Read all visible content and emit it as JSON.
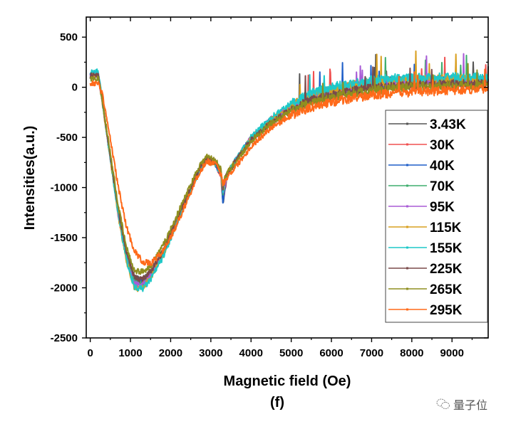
{
  "chart_data": {
    "type": "line",
    "title": "",
    "panel_label": "(f)",
    "xlabel": "Magnetic field (Oe)",
    "ylabel": "Intensities(a.u.)",
    "xlim": [
      -100,
      9900
    ],
    "ylim": [
      -2500,
      700
    ],
    "xticks": [
      0,
      1000,
      2000,
      3000,
      4000,
      5000,
      6000,
      7000,
      8000,
      9000
    ],
    "yticks": [
      500,
      0,
      -500,
      -1000,
      -1500,
      -2000,
      -2500
    ],
    "x_minor_step": 500,
    "y_minor_step": 250,
    "legend_position": "right",
    "grid": false,
    "x": [
      0,
      200,
      300,
      500,
      700,
      900,
      1100,
      1300,
      1500,
      1800,
      2100,
      2400,
      2700,
      2900,
      3100,
      3250,
      3300,
      3400,
      3600,
      4000,
      4500,
      5000,
      5500,
      6000,
      6500,
      7000,
      7500,
      8000,
      8500,
      9000,
      9500,
      9900
    ],
    "series": [
      {
        "name": "3.43K",
        "color": "#555555",
        "values": [
          110,
          120,
          -150,
          -700,
          -1250,
          -1650,
          -1900,
          -1920,
          -1850,
          -1650,
          -1380,
          -1100,
          -830,
          -720,
          -750,
          -860,
          -1180,
          -880,
          -750,
          -520,
          -330,
          -200,
          -110,
          -50,
          -10,
          20,
          40,
          50,
          60,
          60,
          60,
          60
        ]
      },
      {
        "name": "30K",
        "color": "#f05050",
        "values": [
          120,
          130,
          -150,
          -720,
          -1280,
          -1700,
          -1950,
          -1960,
          -1880,
          -1670,
          -1400,
          -1120,
          -840,
          -730,
          -760,
          -880,
          -1150,
          -880,
          -750,
          -520,
          -330,
          -200,
          -100,
          -40,
          0,
          30,
          50,
          55,
          60,
          60,
          60,
          60
        ]
      },
      {
        "name": "40K",
        "color": "#1f5fc8",
        "values": [
          130,
          130,
          -140,
          -710,
          -1270,
          -1690,
          -1940,
          -1950,
          -1870,
          -1660,
          -1390,
          -1110,
          -830,
          -720,
          -750,
          -870,
          -1130,
          -870,
          -740,
          -510,
          -320,
          -190,
          -90,
          -30,
          10,
          40,
          60,
          65,
          70,
          70,
          70,
          70
        ]
      },
      {
        "name": "70K",
        "color": "#3fae6e",
        "values": [
          120,
          130,
          -140,
          -700,
          -1260,
          -1690,
          -1950,
          -1960,
          -1880,
          -1660,
          -1390,
          -1100,
          -830,
          -720,
          -750,
          -860,
          -1080,
          -870,
          -740,
          -510,
          -320,
          -190,
          -90,
          -30,
          10,
          40,
          60,
          65,
          70,
          70,
          70,
          70
        ]
      },
      {
        "name": "95K",
        "color": "#a85bd6",
        "values": [
          120,
          120,
          -150,
          -710,
          -1270,
          -1700,
          -1960,
          -1970,
          -1880,
          -1660,
          -1390,
          -1100,
          -830,
          -720,
          -750,
          -860,
          -1060,
          -870,
          -740,
          -510,
          -320,
          -190,
          -90,
          -30,
          10,
          40,
          60,
          65,
          70,
          70,
          70,
          70
        ]
      },
      {
        "name": "115K",
        "color": "#d9a020",
        "values": [
          110,
          120,
          -150,
          -720,
          -1290,
          -1730,
          -2010,
          -2000,
          -1900,
          -1680,
          -1400,
          -1110,
          -830,
          -720,
          -750,
          -860,
          -1040,
          -870,
          -740,
          -510,
          -320,
          -180,
          -80,
          -20,
          20,
          50,
          70,
          75,
          80,
          80,
          80,
          80
        ]
      },
      {
        "name": "155K",
        "color": "#1ec8c8",
        "values": [
          160,
          160,
          -140,
          -710,
          -1280,
          -1720,
          -2000,
          -2010,
          -1920,
          -1700,
          -1420,
          -1120,
          -840,
          -730,
          -760,
          -860,
          -1020,
          -870,
          -740,
          -500,
          -300,
          -160,
          -60,
          0,
          40,
          70,
          90,
          95,
          100,
          100,
          100,
          100
        ]
      },
      {
        "name": "225K",
        "color": "#7a4a4a",
        "values": [
          120,
          120,
          -130,
          -690,
          -1230,
          -1640,
          -1900,
          -1920,
          -1840,
          -1640,
          -1370,
          -1090,
          -820,
          -720,
          -740,
          -850,
          -1000,
          -870,
          -750,
          -530,
          -350,
          -220,
          -130,
          -80,
          -40,
          -10,
          10,
          20,
          25,
          30,
          30,
          30
        ]
      },
      {
        "name": "265K",
        "color": "#8f8f20",
        "values": [
          80,
          90,
          -130,
          -660,
          -1190,
          -1600,
          -1830,
          -1840,
          -1780,
          -1590,
          -1330,
          -1060,
          -790,
          -690,
          -720,
          -820,
          -960,
          -860,
          -760,
          -540,
          -360,
          -240,
          -150,
          -100,
          -60,
          -30,
          -10,
          0,
          10,
          20,
          20,
          20
        ]
      },
      {
        "name": "295K",
        "color": "#ff6a1a",
        "values": [
          40,
          40,
          -60,
          -520,
          -1000,
          -1390,
          -1630,
          -1740,
          -1760,
          -1640,
          -1420,
          -1140,
          -860,
          -740,
          -760,
          -860,
          -960,
          -900,
          -800,
          -590,
          -400,
          -280,
          -200,
          -150,
          -110,
          -80,
          -60,
          -50,
          -40,
          -30,
          -20,
          -10
        ]
      }
    ]
  },
  "watermark": {
    "text": "量子位",
    "icon": "wechat-icon"
  }
}
